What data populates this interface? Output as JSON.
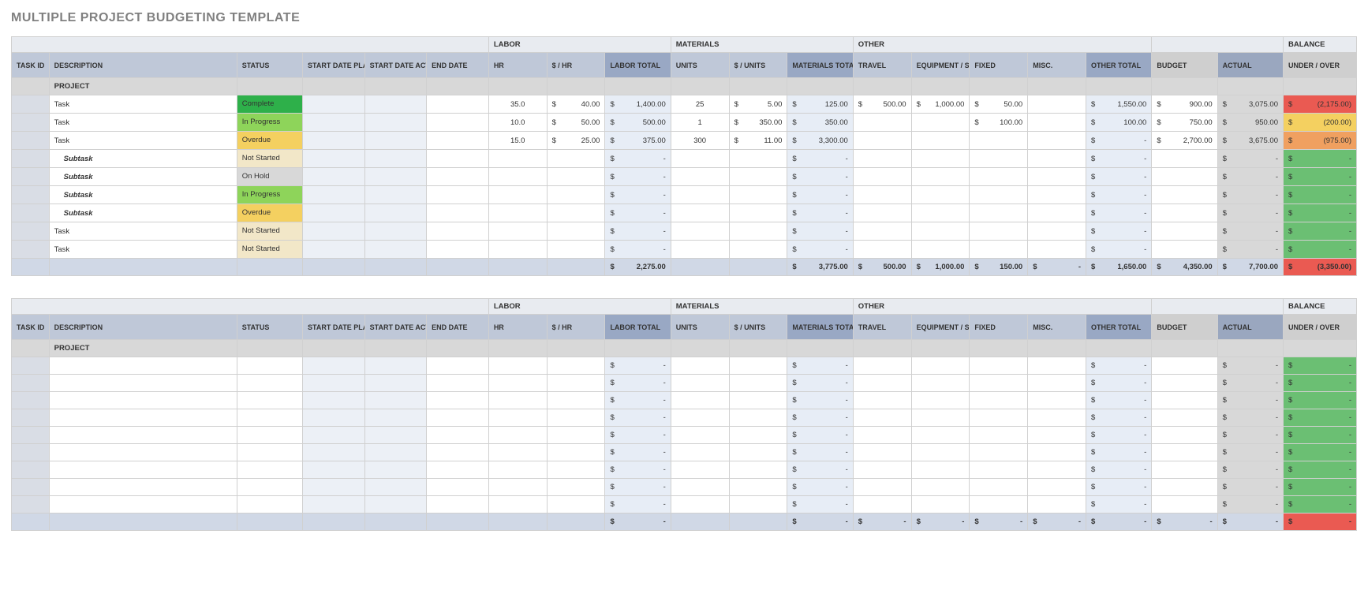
{
  "title": "MULTIPLE PROJECT BUDGETING TEMPLATE",
  "status_colors": {
    "Complete": "#2eb04a",
    "In Progress": "#8ed45a",
    "Overdue": "#f4d060",
    "Not Started": "#f2e7c8",
    "On Hold": "#d8d8d8"
  },
  "balance_colors": {
    "severe": "#ea5a52",
    "warn": "#f4d060",
    "mid": "#f0a060",
    "ok": "#6bbf73"
  },
  "groups": {
    "labor": "LABOR",
    "materials": "MATERIALS",
    "other": "OTHER",
    "balance": "BALANCE"
  },
  "headers": {
    "task_id": "TASK ID",
    "description": "DESCRIPTION",
    "status": "STATUS",
    "start_planned": "START DATE PLANNED",
    "start_actual": "START DATE ACTUAL",
    "end_date": "END DATE",
    "hr": "HR",
    "per_hr": "$ / HR",
    "labor_total": "LABOR TOTAL",
    "units": "UNITS",
    "per_unit": "$ / UNITS",
    "materials_total": "MATERIALS TOTAL",
    "travel": "TRAVEL",
    "equip": "EQUIPMENT / SPACE",
    "fixed": "FIXED",
    "misc": "MISC.",
    "other_total": "OTHER TOTAL",
    "budget": "BUDGET",
    "actual": "ACTUAL",
    "under_over": "UNDER / OVER"
  },
  "projects": [
    {
      "name": "PROJECT",
      "rows": [
        {
          "desc": "Task",
          "sub": false,
          "status": "Complete",
          "hr": "35.0",
          "per_hr": "40.00",
          "labor_total": "1,400.00",
          "units": "25",
          "per_unit": "5.00",
          "mat_total": "125.00",
          "travel": "500.00",
          "equip": "1,000.00",
          "fixed": "50.00",
          "misc": "",
          "other_total": "1,550.00",
          "budget": "900.00",
          "actual": "3,075.00",
          "balance": "(2,175.00)",
          "bal_key": "severe"
        },
        {
          "desc": "Task",
          "sub": false,
          "status": "In Progress",
          "hr": "10.0",
          "per_hr": "50.00",
          "labor_total": "500.00",
          "units": "1",
          "per_unit": "350.00",
          "mat_total": "350.00",
          "travel": "",
          "equip": "",
          "fixed": "100.00",
          "misc": "",
          "other_total": "100.00",
          "budget": "750.00",
          "actual": "950.00",
          "balance": "(200.00)",
          "bal_key": "warn"
        },
        {
          "desc": "Task",
          "sub": false,
          "status": "Overdue",
          "hr": "15.0",
          "per_hr": "25.00",
          "labor_total": "375.00",
          "units": "300",
          "per_unit": "11.00",
          "mat_total": "3,300.00",
          "travel": "",
          "equip": "",
          "fixed": "",
          "misc": "",
          "other_total": "-",
          "budget": "2,700.00",
          "actual": "3,675.00",
          "balance": "(975.00)",
          "bal_key": "mid"
        },
        {
          "desc": "Subtask",
          "sub": true,
          "status": "Not Started",
          "hr": "",
          "per_hr": "",
          "labor_total": "-",
          "units": "",
          "per_unit": "",
          "mat_total": "-",
          "travel": "",
          "equip": "",
          "fixed": "",
          "misc": "",
          "other_total": "-",
          "budget": "",
          "actual": "-",
          "balance": "-",
          "bal_key": "ok"
        },
        {
          "desc": "Subtask",
          "sub": true,
          "status": "On Hold",
          "hr": "",
          "per_hr": "",
          "labor_total": "-",
          "units": "",
          "per_unit": "",
          "mat_total": "-",
          "travel": "",
          "equip": "",
          "fixed": "",
          "misc": "",
          "other_total": "-",
          "budget": "",
          "actual": "-",
          "balance": "-",
          "bal_key": "ok"
        },
        {
          "desc": "Subtask",
          "sub": true,
          "status": "In Progress",
          "hr": "",
          "per_hr": "",
          "labor_total": "-",
          "units": "",
          "per_unit": "",
          "mat_total": "-",
          "travel": "",
          "equip": "",
          "fixed": "",
          "misc": "",
          "other_total": "-",
          "budget": "",
          "actual": "-",
          "balance": "-",
          "bal_key": "ok"
        },
        {
          "desc": "Subtask",
          "sub": true,
          "status": "Overdue",
          "hr": "",
          "per_hr": "",
          "labor_total": "-",
          "units": "",
          "per_unit": "",
          "mat_total": "-",
          "travel": "",
          "equip": "",
          "fixed": "",
          "misc": "",
          "other_total": "-",
          "budget": "",
          "actual": "-",
          "balance": "-",
          "bal_key": "ok"
        },
        {
          "desc": "Task",
          "sub": false,
          "status": "Not Started",
          "hr": "",
          "per_hr": "",
          "labor_total": "-",
          "units": "",
          "per_unit": "",
          "mat_total": "-",
          "travel": "",
          "equip": "",
          "fixed": "",
          "misc": "",
          "other_total": "-",
          "budget": "",
          "actual": "-",
          "balance": "-",
          "bal_key": "ok"
        },
        {
          "desc": "Task",
          "sub": false,
          "status": "Not Started",
          "hr": "",
          "per_hr": "",
          "labor_total": "-",
          "units": "",
          "per_unit": "",
          "mat_total": "-",
          "travel": "",
          "equip": "",
          "fixed": "",
          "misc": "",
          "other_total": "-",
          "budget": "",
          "actual": "-",
          "balance": "-",
          "bal_key": "ok"
        }
      ],
      "totals": {
        "labor_total": "2,275.00",
        "mat_total": "3,775.00",
        "travel": "500.00",
        "equip": "1,000.00",
        "fixed": "150.00",
        "misc": "-",
        "other_total": "1,650.00",
        "budget": "4,350.00",
        "actual": "7,700.00",
        "balance": "(3,350.00)",
        "bal_key": "severe"
      }
    },
    {
      "name": "PROJECT",
      "rows": [
        {
          "desc": "",
          "sub": false,
          "status": "",
          "hr": "",
          "per_hr": "",
          "labor_total": "-",
          "units": "",
          "per_unit": "",
          "mat_total": "-",
          "travel": "",
          "equip": "",
          "fixed": "",
          "misc": "",
          "other_total": "-",
          "budget": "",
          "actual": "-",
          "balance": "-",
          "bal_key": "ok"
        },
        {
          "desc": "",
          "sub": false,
          "status": "",
          "hr": "",
          "per_hr": "",
          "labor_total": "-",
          "units": "",
          "per_unit": "",
          "mat_total": "-",
          "travel": "",
          "equip": "",
          "fixed": "",
          "misc": "",
          "other_total": "-",
          "budget": "",
          "actual": "-",
          "balance": "-",
          "bal_key": "ok"
        },
        {
          "desc": "",
          "sub": false,
          "status": "",
          "hr": "",
          "per_hr": "",
          "labor_total": "-",
          "units": "",
          "per_unit": "",
          "mat_total": "-",
          "travel": "",
          "equip": "",
          "fixed": "",
          "misc": "",
          "other_total": "-",
          "budget": "",
          "actual": "-",
          "balance": "-",
          "bal_key": "ok"
        },
        {
          "desc": "",
          "sub": false,
          "status": "",
          "hr": "",
          "per_hr": "",
          "labor_total": "-",
          "units": "",
          "per_unit": "",
          "mat_total": "-",
          "travel": "",
          "equip": "",
          "fixed": "",
          "misc": "",
          "other_total": "-",
          "budget": "",
          "actual": "-",
          "balance": "-",
          "bal_key": "ok"
        },
        {
          "desc": "",
          "sub": false,
          "status": "",
          "hr": "",
          "per_hr": "",
          "labor_total": "-",
          "units": "",
          "per_unit": "",
          "mat_total": "-",
          "travel": "",
          "equip": "",
          "fixed": "",
          "misc": "",
          "other_total": "-",
          "budget": "",
          "actual": "-",
          "balance": "-",
          "bal_key": "ok"
        },
        {
          "desc": "",
          "sub": false,
          "status": "",
          "hr": "",
          "per_hr": "",
          "labor_total": "-",
          "units": "",
          "per_unit": "",
          "mat_total": "-",
          "travel": "",
          "equip": "",
          "fixed": "",
          "misc": "",
          "other_total": "-",
          "budget": "",
          "actual": "-",
          "balance": "-",
          "bal_key": "ok"
        },
        {
          "desc": "",
          "sub": false,
          "status": "",
          "hr": "",
          "per_hr": "",
          "labor_total": "-",
          "units": "",
          "per_unit": "",
          "mat_total": "-",
          "travel": "",
          "equip": "",
          "fixed": "",
          "misc": "",
          "other_total": "-",
          "budget": "",
          "actual": "-",
          "balance": "-",
          "bal_key": "ok"
        },
        {
          "desc": "",
          "sub": false,
          "status": "",
          "hr": "",
          "per_hr": "",
          "labor_total": "-",
          "units": "",
          "per_unit": "",
          "mat_total": "-",
          "travel": "",
          "equip": "",
          "fixed": "",
          "misc": "",
          "other_total": "-",
          "budget": "",
          "actual": "-",
          "balance": "-",
          "bal_key": "ok"
        },
        {
          "desc": "",
          "sub": false,
          "status": "",
          "hr": "",
          "per_hr": "",
          "labor_total": "-",
          "units": "",
          "per_unit": "",
          "mat_total": "-",
          "travel": "",
          "equip": "",
          "fixed": "",
          "misc": "",
          "other_total": "-",
          "budget": "",
          "actual": "-",
          "balance": "-",
          "bal_key": "ok"
        }
      ],
      "totals": {
        "labor_total": "-",
        "mat_total": "-",
        "travel": "-",
        "equip": "-",
        "fixed": "-",
        "misc": "-",
        "other_total": "-",
        "budget": "-",
        "actual": "-",
        "balance": "-",
        "bal_key": "severe"
      }
    }
  ]
}
